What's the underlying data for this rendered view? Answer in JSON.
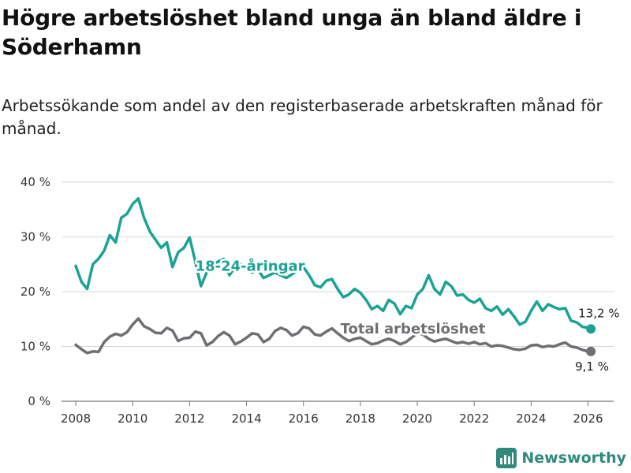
{
  "title": "Högre arbetslöshet bland unga än bland äldre i Söderhamn",
  "subtitle": "Arbetssökande som andel av den registerbaserade arbetskraften månad för månad.",
  "brand": {
    "name": "Newsworthy",
    "icon": "newsworthy-logo-icon",
    "color": "#2e8b7c"
  },
  "chart_data": {
    "type": "line",
    "title": "Högre arbetslöshet bland unga än bland äldre i Söderhamn",
    "xlabel": "",
    "ylabel": "",
    "xlim": [
      2007.5,
      2026.9
    ],
    "ylim": [
      0,
      40
    ],
    "y_ticks": [
      0,
      10,
      20,
      30,
      40
    ],
    "y_tick_labels": [
      "0 %",
      "10 %",
      "20 %",
      "30 %",
      "40 %"
    ],
    "x_ticks": [
      2008,
      2010,
      2012,
      2014,
      2016,
      2018,
      2020,
      2022,
      2024,
      2026
    ],
    "x_tick_labels": [
      "2008",
      "2010",
      "2012",
      "2014",
      "2016",
      "2018",
      "2020",
      "2022",
      "2024",
      "2026"
    ],
    "grid": "horizontal",
    "series": [
      {
        "name": "Total arbetslöshet",
        "label": "Total arbetslöshet",
        "color": "#6e6e73",
        "end_label": "9,1 %",
        "x": [
          2008.0,
          2008.2,
          2008.4,
          2008.6,
          2008.8,
          2009.0,
          2009.2,
          2009.4,
          2009.6,
          2009.8,
          2010.0,
          2010.2,
          2010.4,
          2010.6,
          2010.8,
          2011.0,
          2011.2,
          2011.4,
          2011.6,
          2011.8,
          2012.0,
          2012.2,
          2012.4,
          2012.6,
          2012.8,
          2013.0,
          2013.2,
          2013.4,
          2013.6,
          2013.8,
          2014.0,
          2014.2,
          2014.4,
          2014.6,
          2014.8,
          2015.0,
          2015.2,
          2015.4,
          2015.6,
          2015.8,
          2016.0,
          2016.2,
          2016.4,
          2016.6,
          2016.8,
          2017.0,
          2017.2,
          2017.4,
          2017.6,
          2017.8,
          2018.0,
          2018.2,
          2018.4,
          2018.6,
          2018.8,
          2019.0,
          2019.2,
          2019.4,
          2019.6,
          2019.8,
          2020.0,
          2020.2,
          2020.4,
          2020.6,
          2020.8,
          2021.0,
          2021.2,
          2021.4,
          2021.6,
          2021.8,
          2022.0,
          2022.2,
          2022.4,
          2022.6,
          2022.8,
          2023.0,
          2023.2,
          2023.4,
          2023.6,
          2023.8,
          2024.0,
          2024.2,
          2024.4,
          2024.6,
          2024.8,
          2025.0,
          2025.2,
          2025.4,
          2025.6,
          2025.8,
          2026.0,
          2026.1
        ],
        "values": [
          10.3,
          9.5,
          8.8,
          9.1,
          9.0,
          10.8,
          11.8,
          12.3,
          12.0,
          12.6,
          14.0,
          15.1,
          13.7,
          13.2,
          12.5,
          12.4,
          13.4,
          12.9,
          11.0,
          11.5,
          11.6,
          12.7,
          12.4,
          10.2,
          10.8,
          11.9,
          12.6,
          12.0,
          10.4,
          10.9,
          11.6,
          12.4,
          12.2,
          10.8,
          11.4,
          12.8,
          13.4,
          13.0,
          12.0,
          12.4,
          13.6,
          13.3,
          12.2,
          12.0,
          12.7,
          13.3,
          12.4,
          11.6,
          11.0,
          11.4,
          11.6,
          11.0,
          10.4,
          10.6,
          11.1,
          11.4,
          11.0,
          10.4,
          10.8,
          11.6,
          12.4,
          12.2,
          11.4,
          10.9,
          11.2,
          11.4,
          11.0,
          10.6,
          10.8,
          10.5,
          10.8,
          10.4,
          10.6,
          10.0,
          10.2,
          10.1,
          9.8,
          9.5,
          9.4,
          9.6,
          10.2,
          10.3,
          9.9,
          10.1,
          10.0,
          10.4,
          10.7,
          10.0,
          9.8,
          9.4,
          9.1,
          9.1
        ]
      },
      {
        "name": "18-24-åringar",
        "label": "18-24-åringar",
        "color": "#1aa394",
        "end_label": "13,2 %",
        "x": [
          2008.0,
          2008.2,
          2008.4,
          2008.6,
          2008.8,
          2009.0,
          2009.2,
          2009.4,
          2009.6,
          2009.8,
          2010.0,
          2010.2,
          2010.4,
          2010.6,
          2010.8,
          2011.0,
          2011.2,
          2011.4,
          2011.6,
          2011.8,
          2012.0,
          2012.2,
          2012.4,
          2012.6,
          2012.8,
          2013.0,
          2013.2,
          2013.4,
          2013.6,
          2013.8,
          2014.0,
          2014.2,
          2014.4,
          2014.6,
          2014.8,
          2015.0,
          2015.2,
          2015.4,
          2015.6,
          2015.8,
          2016.0,
          2016.2,
          2016.4,
          2016.6,
          2016.8,
          2017.0,
          2017.2,
          2017.4,
          2017.6,
          2017.8,
          2018.0,
          2018.2,
          2018.4,
          2018.6,
          2018.8,
          2019.0,
          2019.2,
          2019.4,
          2019.6,
          2019.8,
          2020.0,
          2020.2,
          2020.4,
          2020.6,
          2020.8,
          2021.0,
          2021.2,
          2021.4,
          2021.6,
          2021.8,
          2022.0,
          2022.2,
          2022.4,
          2022.6,
          2022.8,
          2023.0,
          2023.2,
          2023.4,
          2023.6,
          2023.8,
          2024.0,
          2024.2,
          2024.4,
          2024.6,
          2024.8,
          2025.0,
          2025.2,
          2025.4,
          2025.6,
          2025.8,
          2026.0,
          2026.1
        ],
        "values": [
          24.7,
          21.8,
          20.5,
          25.0,
          26.0,
          27.5,
          30.3,
          29.0,
          33.5,
          34.2,
          36.0,
          37.0,
          33.5,
          31.0,
          29.5,
          28.0,
          29.0,
          24.5,
          27.2,
          28.0,
          29.9,
          25.5,
          21.0,
          23.5,
          24.8,
          25.5,
          26.0,
          23.0,
          24.5,
          25.0,
          24.2,
          23.5,
          24.0,
          22.5,
          23.0,
          23.5,
          23.0,
          22.5,
          23.2,
          24.0,
          24.5,
          23.0,
          21.2,
          20.8,
          22.0,
          22.3,
          20.5,
          19.0,
          19.5,
          20.5,
          19.8,
          18.5,
          16.8,
          17.4,
          16.5,
          18.5,
          17.8,
          15.9,
          17.4,
          17.0,
          19.5,
          20.5,
          23.0,
          20.5,
          19.5,
          21.8,
          21.0,
          19.3,
          19.5,
          18.5,
          18.0,
          18.7,
          17.0,
          16.5,
          17.3,
          15.8,
          16.8,
          15.5,
          14.0,
          14.5,
          16.5,
          18.2,
          16.5,
          17.7,
          17.2,
          16.8,
          17.0,
          14.7,
          14.4,
          13.6,
          13.4,
          13.2
        ]
      }
    ]
  }
}
